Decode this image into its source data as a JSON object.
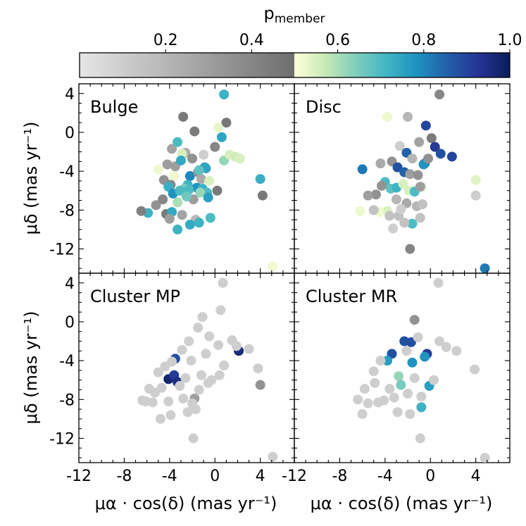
{
  "colorbar": {
    "label_main": "p",
    "label_sub": "member",
    "ticks": [
      "0.2",
      "0.4",
      "0.6",
      "0.8",
      "1.0"
    ],
    "tick_values": [
      0.2,
      0.4,
      0.6,
      0.8,
      1.0
    ],
    "range": [
      0.0,
      1.0
    ],
    "threshold": 0.5,
    "gray_stops": [
      "#e6e6e6",
      "#6e6e6e"
    ],
    "color_stops": [
      "#ffffd9",
      "#c7e9b4",
      "#7fcdbb",
      "#41b6c4",
      "#1d91c0",
      "#225ea8",
      "#253494",
      "#081d58"
    ]
  },
  "xlabel": "μα · cos(δ) (mas yr⁻¹)",
  "ylabel": "μδ (mas yr⁻¹)",
  "x_tick_labels": [
    "-12",
    "-8",
    "-4",
    "0",
    "4"
  ],
  "y_tick_labels": [
    "4",
    "0",
    "-4",
    "-8",
    "-12"
  ],
  "chart_data": [
    {
      "type": "scatter",
      "title": "Bulge",
      "xlim": [
        -12,
        7
      ],
      "ylim": [
        -14.5,
        5
      ],
      "x": [
        0.8,
        -2.8,
        1.0,
        0.3,
        -1.8,
        0.6,
        -3.8,
        -3.3,
        -2.6,
        -2.0,
        -1.0,
        0.0,
        -2.9,
        -5.0,
        -4.2,
        -3.5,
        -3.0,
        -2.2,
        -1.5,
        -0.9,
        0.8,
        1.3,
        1.8,
        2.2,
        4.0,
        -1.2,
        -0.5,
        -0.8,
        -1.4,
        -3.6,
        -4.5,
        -3.9,
        -2.4,
        -1.6,
        -1.1,
        -0.7,
        -2.7,
        -4.1,
        -3.7,
        -3.1,
        -2.3,
        -1.3,
        -0.6,
        0.2,
        -1.9,
        -2.5,
        -3.3,
        -4.6,
        -5.2,
        -5.9,
        -6.5,
        -4.3,
        -3.8,
        -2.9,
        -4.0,
        -1.7,
        -0.4,
        -1.4,
        -2.2,
        -3.3,
        4.2,
        5.1
      ],
      "y": [
        3.9,
        1.6,
        1.0,
        0.5,
        0.1,
        -0.5,
        -1.7,
        -1.0,
        -2.1,
        -2.7,
        -2.3,
        -1.5,
        -2.2,
        -3.8,
        -3.3,
        -3.5,
        -2.9,
        -4.5,
        -4.1,
        -3.6,
        -2.9,
        -2.3,
        -2.5,
        -2.7,
        -4.8,
        -4.8,
        -5.0,
        -3.7,
        -3.9,
        -4.5,
        -4.9,
        -5.4,
        -5.4,
        -5.7,
        -5.8,
        -6.2,
        -5.8,
        -5.6,
        -6.3,
        -6.0,
        -5.9,
        -6.2,
        -6.7,
        -6.0,
        -6.9,
        -6.6,
        -7.2,
        -6.9,
        -7.5,
        -8.3,
        -8.1,
        -8.4,
        -8.2,
        -8.5,
        -8.9,
        -9.0,
        -8.8,
        -9.3,
        -9.5,
        -10.0,
        -6.5,
        -13.8
      ],
      "p": [
        0.72,
        0.45,
        0.46,
        0.53,
        0.45,
        0.75,
        0.28,
        0.7,
        0.25,
        0.35,
        0.1,
        0.4,
        0.55,
        0.52,
        0.3,
        0.3,
        0.74,
        0.8,
        0.35,
        0.76,
        0.62,
        0.55,
        0.56,
        0.55,
        0.73,
        0.25,
        0.55,
        0.75,
        0.68,
        0.52,
        0.35,
        0.4,
        0.72,
        0.78,
        0.72,
        0.7,
        0.65,
        0.73,
        0.78,
        0.7,
        0.7,
        0.62,
        0.76,
        0.45,
        0.3,
        0.66,
        0.6,
        0.4,
        0.35,
        0.72,
        0.42,
        0.45,
        0.74,
        0.28,
        0.3,
        0.2,
        0.7,
        0.72,
        0.74,
        0.72,
        0.45,
        0.52
      ]
    },
    {
      "type": "scatter",
      "title": "Disc",
      "xlim": [
        -12,
        7
      ],
      "ylim": [
        -14.5,
        5
      ],
      "x": [
        0.8,
        -3.8,
        -2.0,
        -0.4,
        0.1,
        -1.0,
        -2.7,
        -0.5,
        0.4,
        0.9,
        1.9,
        -2.1,
        -1.6,
        -0.6,
        -0.2,
        -3.4,
        -4.4,
        -2.9,
        -2.3,
        -1.8,
        -1.1,
        -0.8,
        -6.0,
        -4.0,
        -4.3,
        -3.5,
        -3.0,
        -2.4,
        -1.9,
        -1.4,
        -0.9,
        -4.8,
        -5.5,
        -6.2,
        -3.0,
        -2.1,
        -1.2,
        -0.7,
        -3.8,
        -4.5,
        -5.0,
        -3.6,
        -2.8,
        -1.6,
        4.0,
        4.0,
        4.8,
        -1.8,
        -2.3,
        -0.9,
        -2.6,
        -3.3
      ],
      "y": [
        3.9,
        1.6,
        1.6,
        0.7,
        -0.6,
        -1.0,
        -1.4,
        -3.2,
        -1.5,
        -2.2,
        -2.5,
        -2.1,
        -2.7,
        -3.3,
        -2.7,
        -3.0,
        -3.2,
        -3.6,
        -4.1,
        -4.3,
        -4.4,
        -5.6,
        -3.8,
        -5.1,
        -5.5,
        -5.8,
        -5.7,
        -5.3,
        -6.0,
        -6.1,
        -5.6,
        -6.4,
        -6.5,
        -8.1,
        -6.9,
        -7.3,
        -7.6,
        -7.4,
        -8.1,
        -8.2,
        -8.0,
        -8.6,
        -8.6,
        -9.4,
        -4.9,
        -6.5,
        -14.0,
        -12.0,
        -9.3,
        -8.8,
        -7.9,
        -9.9
      ],
      "p": [
        0.4,
        0.52,
        0.2,
        0.9,
        0.45,
        0.28,
        0.1,
        0.85,
        0.92,
        0.88,
        0.9,
        0.85,
        0.2,
        0.78,
        0.35,
        0.35,
        0.25,
        0.88,
        0.85,
        0.3,
        0.35,
        0.55,
        0.82,
        0.7,
        0.35,
        0.68,
        0.72,
        0.55,
        0.55,
        0.7,
        0.3,
        0.35,
        0.3,
        0.52,
        0.2,
        0.25,
        0.2,
        0.15,
        0.55,
        0.52,
        0.15,
        0.15,
        0.15,
        0.7,
        0.54,
        0.1,
        0.82,
        0.4,
        0.15,
        0.15,
        0.1,
        0.1
      ]
    },
    {
      "type": "scatter",
      "title": "Cluster MP",
      "xlim": [
        -12,
        7
      ],
      "ylim": [
        -14.5,
        5
      ],
      "x": [
        -3.5,
        -4.1,
        -3.6,
        -3.3,
        2.1,
        -1.8,
        4.0,
        0.5,
        -1.1,
        -1.5,
        -0.5,
        -2.3,
        -2.9,
        -3.8,
        -4.4,
        -5.0,
        -5.8,
        -6.4,
        -2.1,
        -0.8,
        0.3,
        1.5,
        1.9,
        3.0,
        -1.2,
        -2.6,
        -3.1,
        -4.7,
        -5.3,
        -6.1,
        -2.0,
        -0.3,
        -4.1,
        -5.5,
        -1.7,
        -2.4,
        -3.9,
        -4.8,
        -1.4,
        -0.6,
        0.4,
        0.8,
        -1.9,
        -2.8,
        3.8,
        5.1,
        0.7
      ],
      "y": [
        -3.8,
        -5.9,
        -5.5,
        -6.2,
        -3.0,
        -7.9,
        -6.5,
        1.2,
        0.5,
        -0.6,
        -1.5,
        -2.0,
        -2.9,
        -4.1,
        -4.6,
        -5.2,
        -6.9,
        -8.1,
        -4.0,
        -3.3,
        -2.4,
        -1.9,
        -2.5,
        -2.8,
        -5.5,
        -5.8,
        -6.6,
        -6.8,
        -7.3,
        -8.2,
        -8.4,
        -6.0,
        -8.2,
        -8.3,
        -9.0,
        -9.3,
        -9.6,
        -10.0,
        -7.0,
        -6.3,
        -5.5,
        -4.5,
        -12.0,
        -7.9,
        -4.8,
        -13.9,
        4.0
      ],
      "p": [
        0.88,
        0.97,
        0.92,
        0.95,
        0.96,
        0.3,
        0.35,
        0.1,
        0.1,
        0.1,
        0.1,
        0.1,
        0.1,
        0.1,
        0.1,
        0.1,
        0.1,
        0.1,
        0.1,
        0.1,
        0.1,
        0.1,
        0.1,
        0.1,
        0.1,
        0.1,
        0.1,
        0.1,
        0.1,
        0.1,
        0.1,
        0.1,
        0.1,
        0.1,
        0.1,
        0.1,
        0.1,
        0.1,
        0.1,
        0.1,
        0.1,
        0.1,
        0.1,
        0.1,
        0.1,
        0.1,
        0.1
      ]
    },
    {
      "type": "scatter",
      "title": "Cluster MR",
      "xlim": [
        -12,
        7
      ],
      "ylim": [
        -14.5,
        5
      ],
      "x": [
        -1.4,
        -2.3,
        -1.7,
        -3.4,
        -0.3,
        -0.5,
        -3.8,
        -1.6,
        -2.8,
        -2.6,
        -0.1,
        -0.8,
        -2.1,
        -1.1,
        -4.4,
        -5.0,
        -5.8,
        -6.4,
        -4.6,
        -3.2,
        -0.8,
        0.8,
        1.4,
        2.3,
        3.9,
        4.8,
        -4.1,
        -5.5,
        -6.0,
        -2.9,
        -1.8,
        -0.9,
        0.3,
        -4.9,
        -3.6,
        -2.0,
        -1.4,
        0.7
      ],
      "y": [
        0.2,
        -2.0,
        -2.1,
        -3.3,
        -3.3,
        -3.6,
        -4.0,
        -4.2,
        -5.6,
        -6.5,
        -6.6,
        -8.8,
        -3.0,
        -1.6,
        -4.0,
        -5.1,
        -6.9,
        -8.0,
        -8.3,
        -7.8,
        -7.7,
        -2.0,
        -2.6,
        -3.0,
        -4.9,
        -14.0,
        -8.1,
        -8.4,
        -9.5,
        -9.3,
        -9.5,
        -12.0,
        -6.0,
        -6.3,
        -6.9,
        -7.4,
        -5.8,
        4.0
      ],
      "p": [
        0.35,
        0.88,
        0.88,
        0.88,
        0.92,
        0.78,
        0.76,
        0.78,
        0.62,
        0.65,
        0.76,
        0.72,
        0.1,
        0.1,
        0.1,
        0.1,
        0.1,
        0.1,
        0.1,
        0.1,
        0.1,
        0.1,
        0.1,
        0.1,
        0.1,
        0.1,
        0.1,
        0.1,
        0.1,
        0.1,
        0.1,
        0.1,
        0.1,
        0.1,
        0.1,
        0.1,
        0.1,
        0.1
      ]
    }
  ]
}
